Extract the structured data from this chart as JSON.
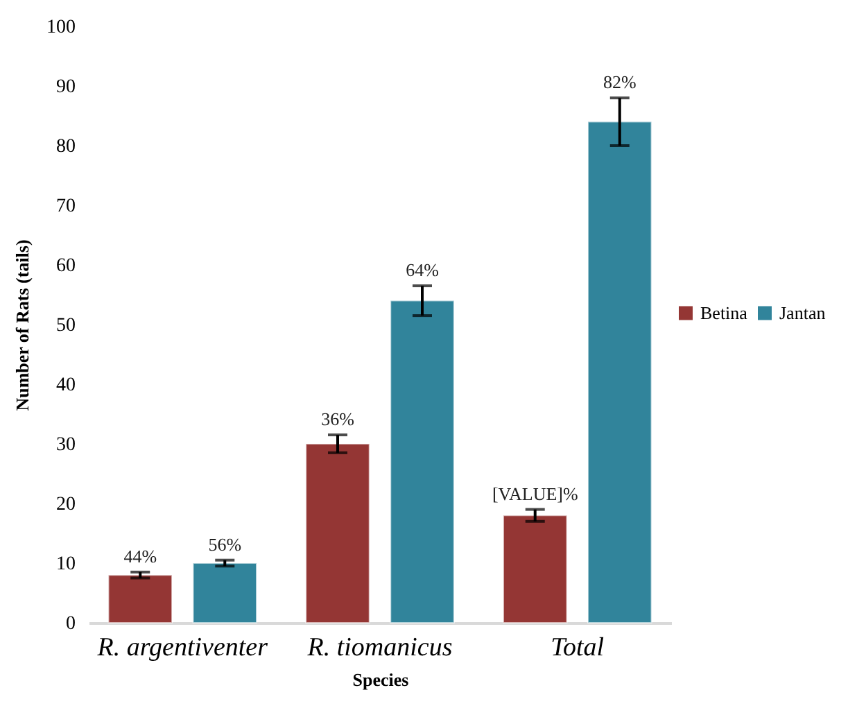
{
  "chart_data": {
    "type": "bar",
    "xlabel": "Species",
    "ylabel": "Number of Rats (tails)",
    "categories": [
      "R. argentiventer",
      "R. tiomanicus",
      "Total"
    ],
    "series": [
      {
        "name": "Betina",
        "color": "#943634",
        "values": [
          8,
          30,
          18
        ],
        "errors": [
          0.5,
          1.5,
          1
        ]
      },
      {
        "name": "Jantan",
        "color": "#31849b",
        "values": [
          10,
          54,
          84
        ],
        "errors": [
          0.5,
          2.5,
          4
        ]
      }
    ],
    "annotations": [
      "44%",
      "56%",
      "36%",
      "64%",
      "[VALUE]%",
      "82%"
    ],
    "ylim": [
      0,
      100
    ],
    "yticks": [
      0,
      10,
      20,
      30,
      40,
      50,
      60,
      70,
      80,
      90,
      100
    ],
    "grid": false,
    "legend": "right"
  }
}
